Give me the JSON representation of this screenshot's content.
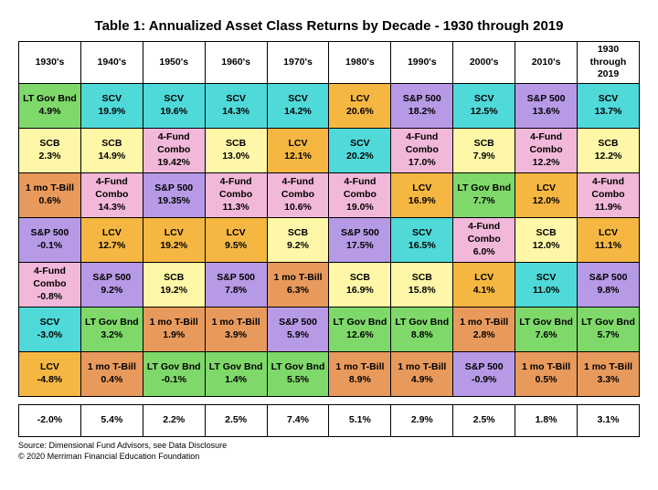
{
  "title": "Table 1: Annualized Asset Class Returns by Decade - 1930 through 2019",
  "headers": [
    "1930's",
    "1940's",
    "1950's",
    "1960's",
    "1970's",
    "1980's",
    "1990's",
    "2000's",
    "2010's",
    "1930 through 2019"
  ],
  "colors": {
    "LT Gov Bnd": "#7fd96a",
    "SCV": "#4fd9d9",
    "LCV": "#f5b742",
    "S&P 500": "#b79ae6",
    "SCB": "#fff7a8",
    "4-Fund Combo": "#f2b8d9",
    "1 mo T-Bill": "#e89a5c"
  },
  "rows": [
    [
      {
        "a": "LT Gov Bnd",
        "p": "4.9%"
      },
      {
        "a": "SCV",
        "p": "19.9%"
      },
      {
        "a": "SCV",
        "p": "19.6%"
      },
      {
        "a": "SCV",
        "p": "14.3%"
      },
      {
        "a": "SCV",
        "p": "14.2%"
      },
      {
        "a": "LCV",
        "p": "20.6%"
      },
      {
        "a": "S&P 500",
        "p": "18.2%"
      },
      {
        "a": "SCV",
        "p": "12.5%"
      },
      {
        "a": "S&P 500",
        "p": "13.6%"
      },
      {
        "a": "SCV",
        "p": "13.7%"
      }
    ],
    [
      {
        "a": "SCB",
        "p": "2.3%"
      },
      {
        "a": "SCB",
        "p": "14.9%"
      },
      {
        "a": "4-Fund Combo",
        "p": "19.42%"
      },
      {
        "a": "SCB",
        "p": "13.0%"
      },
      {
        "a": "LCV",
        "p": "12.1%"
      },
      {
        "a": "SCV",
        "p": "20.2%"
      },
      {
        "a": "4-Fund Combo",
        "p": "17.0%"
      },
      {
        "a": "SCB",
        "p": "7.9%"
      },
      {
        "a": "4-Fund Combo",
        "p": "12.2%"
      },
      {
        "a": "SCB",
        "p": "12.2%"
      }
    ],
    [
      {
        "a": "1 mo T-Bill",
        "p": "0.6%"
      },
      {
        "a": "4-Fund Combo",
        "p": "14.3%"
      },
      {
        "a": "S&P 500",
        "p": "19.35%"
      },
      {
        "a": "4-Fund Combo",
        "p": "11.3%"
      },
      {
        "a": "4-Fund Combo",
        "p": "10.6%"
      },
      {
        "a": "4-Fund Combo",
        "p": "19.0%"
      },
      {
        "a": "LCV",
        "p": "16.9%"
      },
      {
        "a": "LT Gov Bnd",
        "p": "7.7%"
      },
      {
        "a": "LCV",
        "p": "12.0%"
      },
      {
        "a": "4-Fund Combo",
        "p": "11.9%"
      }
    ],
    [
      {
        "a": "S&P 500",
        "p": "-0.1%"
      },
      {
        "a": "LCV",
        "p": "12.7%"
      },
      {
        "a": "LCV",
        "p": "19.2%"
      },
      {
        "a": "LCV",
        "p": "9.5%"
      },
      {
        "a": "SCB",
        "p": "9.2%"
      },
      {
        "a": "S&P 500",
        "p": "17.5%"
      },
      {
        "a": "SCV",
        "p": "16.5%"
      },
      {
        "a": "4-Fund Combo",
        "p": "6.0%"
      },
      {
        "a": "SCB",
        "p": "12.0%"
      },
      {
        "a": "LCV",
        "p": "11.1%"
      }
    ],
    [
      {
        "a": "4-Fund Combo",
        "p": "-0.8%"
      },
      {
        "a": "S&P 500",
        "p": "9.2%"
      },
      {
        "a": "SCB",
        "p": "19.2%"
      },
      {
        "a": "S&P 500",
        "p": "7.8%"
      },
      {
        "a": "1 mo T-Bill",
        "p": "6.3%"
      },
      {
        "a": "SCB",
        "p": "16.9%"
      },
      {
        "a": "SCB",
        "p": "15.8%"
      },
      {
        "a": "LCV",
        "p": "4.1%"
      },
      {
        "a": "SCV",
        "p": "11.0%"
      },
      {
        "a": "S&P 500",
        "p": "9.8%"
      }
    ],
    [
      {
        "a": "SCV",
        "p": "-3.0%"
      },
      {
        "a": "LT Gov Bnd",
        "p": "3.2%"
      },
      {
        "a": "1 mo T-Bill",
        "p": "1.9%"
      },
      {
        "a": "1 mo T-Bill",
        "p": "3.9%"
      },
      {
        "a": "S&P 500",
        "p": "5.9%"
      },
      {
        "a": "LT Gov Bnd",
        "p": "12.6%"
      },
      {
        "a": "LT Gov Bnd",
        "p": "8.8%"
      },
      {
        "a": "1 mo T-Bill",
        "p": "2.8%"
      },
      {
        "a": "LT Gov Bnd",
        "p": "7.6%"
      },
      {
        "a": "LT Gov Bnd",
        "p": "5.7%"
      }
    ],
    [
      {
        "a": "LCV",
        "p": "-4.8%"
      },
      {
        "a": "1 mo T-Bill",
        "p": "0.4%"
      },
      {
        "a": "LT Gov Bnd",
        "p": "-0.1%"
      },
      {
        "a": "LT Gov Bnd",
        "p": "1.4%"
      },
      {
        "a": "LT Gov Bnd",
        "p": "5.5%"
      },
      {
        "a": "1 mo T-Bill",
        "p": "8.9%"
      },
      {
        "a": "1 mo T-Bill",
        "p": "4.9%"
      },
      {
        "a": "S&P 500",
        "p": "-0.9%"
      },
      {
        "a": "1 mo T-Bill",
        "p": "0.5%"
      },
      {
        "a": "1 mo T-Bill",
        "p": "3.3%"
      }
    ]
  ],
  "summary": [
    "-2.0%",
    "5.4%",
    "2.2%",
    "2.5%",
    "7.4%",
    "5.1%",
    "2.9%",
    "2.5%",
    "1.8%",
    "3.1%"
  ],
  "footer1": "Source: Dimensional Fund Advisors, see Data Disclosure",
  "footer2": "© 2020 Merriman Financial Education Foundation"
}
